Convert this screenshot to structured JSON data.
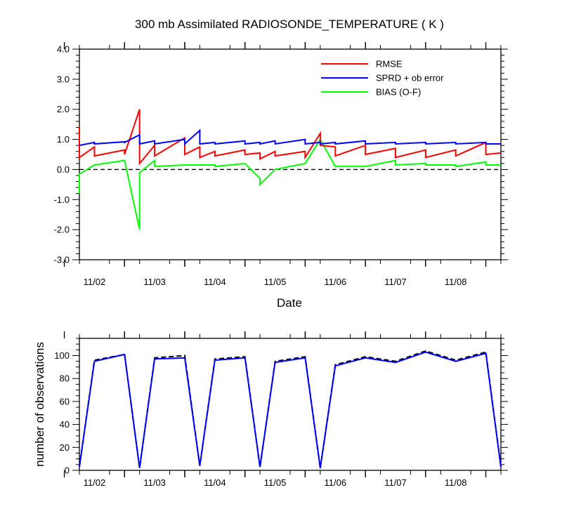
{
  "figure": {
    "title": "300 mb Assimilated RADIOSONDE_TEMPERATURE ( K )"
  },
  "chart_data": [
    {
      "type": "line",
      "title": "300 mb Assimilated RADIOSONDE_TEMPERATURE ( K )",
      "xlabel": "Date",
      "ylabel": "",
      "ylim": [
        -3.0,
        4.0
      ],
      "yticks": [
        "-3.0",
        "-2.0",
        "-1.0",
        "0.0",
        "1.0",
        "2.0",
        "3.0",
        "4.0"
      ],
      "xticks": [
        "11/02",
        "11/03",
        "11/04",
        "11/05",
        "11/06",
        "11/07",
        "11/08"
      ],
      "legend": "top-right",
      "reference_line": {
        "y": 0.0,
        "style": "dashed",
        "color": "#000000"
      },
      "series": [
        {
          "name": "RMSE",
          "color": "#ff0000",
          "points": [
            {
              "x": "11/01 18Z",
              "y": 1.4
            },
            {
              "x": "11/01 18Z",
              "y": 0.4
            },
            {
              "x": "11/02 00Z",
              "y": 0.75
            },
            {
              "x": "11/02 00Z",
              "y": 0.45
            },
            {
              "x": "11/02 12Z",
              "y": 0.65
            },
            {
              "x": "11/02 12Z",
              "y": 0.5
            },
            {
              "x": "11/02 18Z",
              "y": 2.0
            },
            {
              "x": "11/02 18Z",
              "y": 0.2
            },
            {
              "x": "11/03 00Z",
              "y": 0.8
            },
            {
              "x": "11/03 00Z",
              "y": 0.45
            },
            {
              "x": "11/03 12Z",
              "y": 1.05
            },
            {
              "x": "11/03 12Z",
              "y": 0.5
            },
            {
              "x": "11/03 18Z",
              "y": 0.75
            },
            {
              "x": "11/03 18Z",
              "y": 0.4
            },
            {
              "x": "11/04 00Z",
              "y": 0.6
            },
            {
              "x": "11/04 00Z",
              "y": 0.45
            },
            {
              "x": "11/04 12Z",
              "y": 0.65
            },
            {
              "x": "11/04 12Z",
              "y": 0.5
            },
            {
              "x": "11/04 18Z",
              "y": 0.55
            },
            {
              "x": "11/04 18Z",
              "y": 0.35
            },
            {
              "x": "11/05 00Z",
              "y": 0.6
            },
            {
              "x": "11/05 00Z",
              "y": 0.45
            },
            {
              "x": "11/05 12Z",
              "y": 0.6
            },
            {
              "x": "11/05 12Z",
              "y": 0.4
            },
            {
              "x": "11/05 18Z",
              "y": 1.2
            },
            {
              "x": "11/05 18Z",
              "y": 0.8
            },
            {
              "x": "11/06 00Z",
              "y": 0.75
            },
            {
              "x": "11/06 00Z",
              "y": 0.45
            },
            {
              "x": "11/06 12Z",
              "y": 0.8
            },
            {
              "x": "11/06 12Z",
              "y": 0.5
            },
            {
              "x": "11/07 00Z",
              "y": 0.7
            },
            {
              "x": "11/07 00Z",
              "y": 0.4
            },
            {
              "x": "11/07 12Z",
              "y": 0.65
            },
            {
              "x": "11/07 12Z",
              "y": 0.4
            },
            {
              "x": "11/08 00Z",
              "y": 0.65
            },
            {
              "x": "11/08 00Z",
              "y": 0.45
            },
            {
              "x": "11/08 12Z",
              "y": 0.9
            },
            {
              "x": "11/08 12Z",
              "y": 0.5
            },
            {
              "x": "11/08 18Z",
              "y": 0.55
            }
          ]
        },
        {
          "name": "SPRD + ob error",
          "color": "#0000ff",
          "points": [
            {
              "x": "11/01 18Z",
              "y": 0.8
            },
            {
              "x": "11/02 00Z",
              "y": 0.9
            },
            {
              "x": "11/02 00Z",
              "y": 0.85
            },
            {
              "x": "11/02 12Z",
              "y": 0.92
            },
            {
              "x": "11/02 12Z",
              "y": 0.9
            },
            {
              "x": "11/02 18Z",
              "y": 1.15
            },
            {
              "x": "11/02 18Z",
              "y": 0.85
            },
            {
              "x": "11/03 00Z",
              "y": 0.95
            },
            {
              "x": "11/03 00Z",
              "y": 0.85
            },
            {
              "x": "11/03 12Z",
              "y": 1.0
            },
            {
              "x": "11/03 12Z",
              "y": 0.85
            },
            {
              "x": "11/03 18Z",
              "y": 1.3
            },
            {
              "x": "11/03 18Z",
              "y": 0.85
            },
            {
              "x": "11/04 00Z",
              "y": 0.9
            },
            {
              "x": "11/04 00Z",
              "y": 0.85
            },
            {
              "x": "11/04 12Z",
              "y": 0.95
            },
            {
              "x": "11/04 12Z",
              "y": 0.85
            },
            {
              "x": "11/04 18Z",
              "y": 0.9
            },
            {
              "x": "11/04 18Z",
              "y": 0.85
            },
            {
              "x": "11/05 00Z",
              "y": 0.95
            },
            {
              "x": "11/05 00Z",
              "y": 0.85
            },
            {
              "x": "11/05 12Z",
              "y": 1.0
            },
            {
              "x": "11/05 12Z",
              "y": 0.85
            },
            {
              "x": "11/05 18Z",
              "y": 0.9
            },
            {
              "x": "11/05 18Z",
              "y": 0.85
            },
            {
              "x": "11/06 00Z",
              "y": 0.9
            },
            {
              "x": "11/06 00Z",
              "y": 0.85
            },
            {
              "x": "11/06 12Z",
              "y": 0.95
            },
            {
              "x": "11/06 12Z",
              "y": 0.85
            },
            {
              "x": "11/07 00Z",
              "y": 0.9
            },
            {
              "x": "11/07 00Z",
              "y": 0.85
            },
            {
              "x": "11/07 12Z",
              "y": 0.9
            },
            {
              "x": "11/07 12Z",
              "y": 0.85
            },
            {
              "x": "11/08 00Z",
              "y": 0.9
            },
            {
              "x": "11/08 00Z",
              "y": 0.85
            },
            {
              "x": "11/08 12Z",
              "y": 0.9
            },
            {
              "x": "11/08 12Z",
              "y": 0.85
            },
            {
              "x": "11/08 18Z",
              "y": 0.85
            }
          ]
        },
        {
          "name": "BIAS (O-F)",
          "color": "#00ff00",
          "points": [
            {
              "x": "11/01 18Z",
              "y": -0.8
            },
            {
              "x": "11/01 18Z",
              "y": -0.15
            },
            {
              "x": "11/02 00Z",
              "y": 0.15
            },
            {
              "x": "11/02 12Z",
              "y": 0.3
            },
            {
              "x": "11/02 18Z",
              "y": -2.0
            },
            {
              "x": "11/02 18Z",
              "y": -0.1
            },
            {
              "x": "11/03 00Z",
              "y": 0.3
            },
            {
              "x": "11/03 00Z",
              "y": 0.1
            },
            {
              "x": "11/03 12Z",
              "y": 0.15
            },
            {
              "x": "11/03 18Z",
              "y": 0.15
            },
            {
              "x": "11/04 00Z",
              "y": 0.15
            },
            {
              "x": "11/04 00Z",
              "y": 0.1
            },
            {
              "x": "11/04 12Z",
              "y": 0.2
            },
            {
              "x": "11/04 18Z",
              "y": -0.3
            },
            {
              "x": "11/04 18Z",
              "y": -0.5
            },
            {
              "x": "11/05 00Z",
              "y": 0.0
            },
            {
              "x": "11/05 12Z",
              "y": 0.2
            },
            {
              "x": "11/05 18Z",
              "y": 1.0
            },
            {
              "x": "11/06 00Z",
              "y": 0.1
            },
            {
              "x": "11/06 12Z",
              "y": 0.1
            },
            {
              "x": "11/07 00Z",
              "y": 0.3
            },
            {
              "x": "11/07 00Z",
              "y": 0.15
            },
            {
              "x": "11/07 12Z",
              "y": 0.2
            },
            {
              "x": "11/07 12Z",
              "y": 0.15
            },
            {
              "x": "11/08 00Z",
              "y": 0.15
            },
            {
              "x": "11/08 00Z",
              "y": 0.1
            },
            {
              "x": "11/08 12Z",
              "y": 0.25
            },
            {
              "x": "11/08 12Z",
              "y": 0.15
            },
            {
              "x": "11/08 18Z",
              "y": 0.15
            }
          ]
        }
      ]
    },
    {
      "type": "line",
      "title": "",
      "xlabel": "",
      "ylabel": "number of observations",
      "ylim": [
        0,
        115
      ],
      "yticks": [
        "0",
        "20",
        "40",
        "60",
        "80",
        "100"
      ],
      "xticks": [
        "11/02",
        "11/03",
        "11/04",
        "11/05",
        "11/06",
        "11/07",
        "11/08"
      ],
      "series": [
        {
          "color": "#000000",
          "style": "dashed",
          "points": [
            {
              "x": "11/01 18Z",
              "y": 3
            },
            {
              "x": "11/02 00Z",
              "y": 96
            },
            {
              "x": "11/02 12Z",
              "y": 101
            },
            {
              "x": "11/02 18Z",
              "y": 2
            },
            {
              "x": "11/03 00Z",
              "y": 98
            },
            {
              "x": "11/03 12Z",
              "y": 100
            },
            {
              "x": "11/03 18Z",
              "y": 4
            },
            {
              "x": "11/04 00Z",
              "y": 97
            },
            {
              "x": "11/04 12Z",
              "y": 99
            },
            {
              "x": "11/04 18Z",
              "y": 3
            },
            {
              "x": "11/05 00Z",
              "y": 95
            },
            {
              "x": "11/05 12Z",
              "y": 99
            },
            {
              "x": "11/05 18Z",
              "y": 2
            },
            {
              "x": "11/06 00Z",
              "y": 92
            },
            {
              "x": "11/06 12Z",
              "y": 99
            },
            {
              "x": "11/07 00Z",
              "y": 95
            },
            {
              "x": "11/07 12Z",
              "y": 104
            },
            {
              "x": "11/08 00Z",
              "y": 96
            },
            {
              "x": "11/08 12Z",
              "y": 103
            },
            {
              "x": "11/08 18Z",
              "y": 3
            }
          ]
        },
        {
          "color": "#0000ff",
          "style": "solid",
          "points": [
            {
              "x": "11/01 18Z",
              "y": 3
            },
            {
              "x": "11/02 00Z",
              "y": 95
            },
            {
              "x": "11/02 12Z",
              "y": 101
            },
            {
              "x": "11/02 18Z",
              "y": 2
            },
            {
              "x": "11/03 00Z",
              "y": 97
            },
            {
              "x": "11/03 12Z",
              "y": 98
            },
            {
              "x": "11/03 18Z",
              "y": 4
            },
            {
              "x": "11/04 00Z",
              "y": 96
            },
            {
              "x": "11/04 12Z",
              "y": 98
            },
            {
              "x": "11/04 18Z",
              "y": 3
            },
            {
              "x": "11/05 00Z",
              "y": 94
            },
            {
              "x": "11/05 12Z",
              "y": 98
            },
            {
              "x": "11/05 18Z",
              "y": 2
            },
            {
              "x": "11/06 00Z",
              "y": 91
            },
            {
              "x": "11/06 12Z",
              "y": 98
            },
            {
              "x": "11/07 00Z",
              "y": 94
            },
            {
              "x": "11/07 12Z",
              "y": 103
            },
            {
              "x": "11/08 00Z",
              "y": 95
            },
            {
              "x": "11/08 12Z",
              "y": 102
            },
            {
              "x": "11/08 18Z",
              "y": 3
            }
          ]
        }
      ]
    }
  ]
}
